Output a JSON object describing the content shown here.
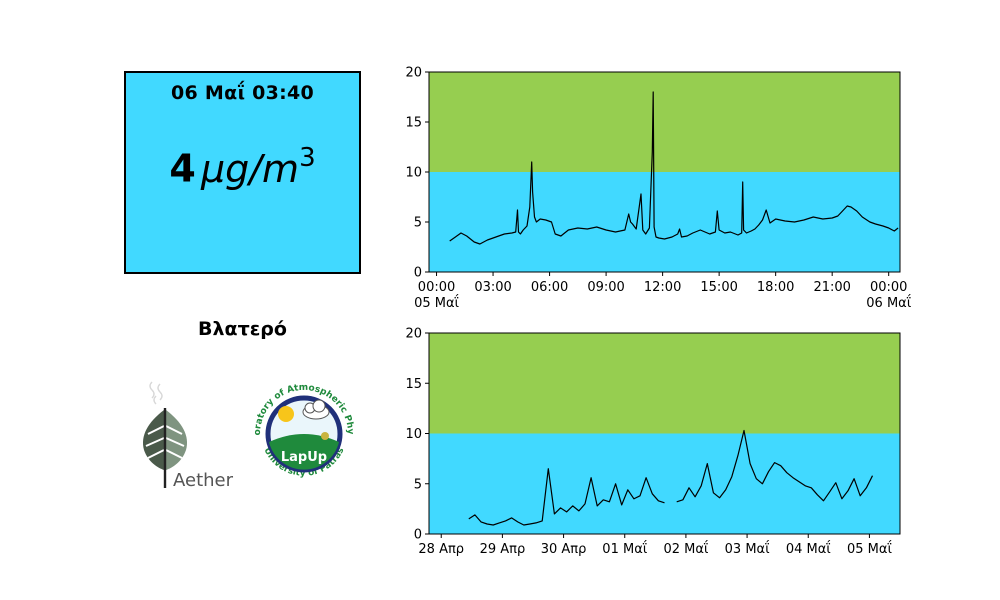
{
  "current_reading": {
    "timestamp": "06 Μαΐ 03:40",
    "value": "4",
    "unit_base": "μg/m",
    "unit_exponent": "3",
    "background": "#41d9ff"
  },
  "station": {
    "name": "Βλατερό"
  },
  "logos": {
    "aether": {
      "wordmark": "Aether"
    },
    "lapup": {
      "center_text": "LapUp",
      "ring_top": "Laboratory of Atmospheric Physics",
      "ring_bottom": "University of Patras"
    }
  },
  "colors": {
    "good_band": "#41d9ff",
    "moderate_band": "#96ce50",
    "line": "#000000"
  },
  "chart_data": [
    {
      "type": "line",
      "title": "",
      "xlabel": "",
      "ylabel": "",
      "ylim": [
        0,
        20
      ],
      "yticks": [
        0,
        5,
        10,
        15,
        20
      ],
      "xlim": [
        -0.4,
        24.6
      ],
      "xtick_positions": [
        0,
        3,
        6,
        9,
        12,
        15,
        18,
        21,
        24
      ],
      "xtick_labels": [
        "00:00\n05 Μαΐ",
        "03:00",
        "06:00",
        "09:00",
        "12:00",
        "15:00",
        "18:00",
        "21:00",
        "00:00\n06 Μαΐ"
      ],
      "bands": [
        {
          "from": 0,
          "to": 10,
          "color": "#41d9ff"
        },
        {
          "from": 10,
          "to": 20,
          "color": "#96ce50"
        }
      ],
      "series": [
        {
          "x": [
            0.7,
            1.0,
            1.3,
            1.6,
            2.0,
            2.3,
            2.7,
            3.0,
            3.3,
            3.6,
            4.0,
            4.2,
            4.3,
            4.35,
            4.45,
            4.6,
            4.8,
            4.95,
            5.05,
            5.1,
            5.2,
            5.3,
            5.5,
            5.8,
            6.1,
            6.3,
            6.6,
            7.0,
            7.5,
            8.0,
            8.5,
            9.0,
            9.5,
            10.0,
            10.2,
            10.3,
            10.4,
            10.6,
            10.85,
            10.95,
            11.1,
            11.3,
            11.45,
            11.5,
            11.55,
            11.65,
            11.8,
            12.1,
            12.5,
            12.8,
            12.9,
            13.0,
            13.3,
            13.6,
            14.0,
            14.5,
            14.8,
            14.9,
            15.0,
            15.3,
            15.6,
            16.0,
            16.2,
            16.25,
            16.3,
            16.45,
            16.7,
            16.9,
            17.1,
            17.3,
            17.5,
            17.7,
            18.0,
            18.5,
            19.0,
            19.5,
            20.0,
            20.5,
            21.0,
            21.3,
            21.5,
            21.8,
            22.0,
            22.3,
            22.6,
            23.0,
            23.3,
            23.7,
            24.0,
            24.3,
            24.5
          ],
          "y": [
            3.1,
            3.5,
            3.9,
            3.6,
            3.0,
            2.8,
            3.2,
            3.4,
            3.6,
            3.8,
            3.9,
            4.0,
            6.2,
            4.0,
            3.8,
            4.2,
            4.6,
            6.5,
            11.0,
            8.0,
            5.5,
            5.0,
            5.3,
            5.2,
            5.0,
            3.8,
            3.6,
            4.2,
            4.4,
            4.3,
            4.5,
            4.2,
            4.0,
            4.2,
            5.8,
            5.0,
            4.8,
            4.3,
            7.8,
            4.2,
            3.8,
            4.4,
            12.0,
            18.0,
            4.5,
            3.5,
            3.4,
            3.3,
            3.5,
            3.8,
            4.3,
            3.5,
            3.6,
            3.9,
            4.2,
            3.8,
            4.0,
            6.1,
            4.2,
            3.9,
            4.0,
            3.7,
            3.9,
            9.0,
            4.2,
            3.9,
            4.1,
            4.3,
            4.7,
            5.2,
            6.2,
            4.9,
            5.3,
            5.1,
            5.0,
            5.2,
            5.5,
            5.3,
            5.4,
            5.6,
            6.0,
            6.6,
            6.5,
            6.1,
            5.5,
            5.0,
            4.8,
            4.6,
            4.4,
            4.1,
            4.4
          ]
        }
      ]
    },
    {
      "type": "line",
      "title": "",
      "xlabel": "",
      "ylabel": "",
      "ylim": [
        0,
        20
      ],
      "yticks": [
        0,
        5,
        10,
        15,
        20
      ],
      "xlim": [
        -0.2,
        7.5
      ],
      "xtick_positions": [
        0,
        1,
        2,
        3,
        4,
        5,
        6,
        7
      ],
      "xtick_labels": [
        "28 Απρ",
        "29 Απρ",
        "30 Απρ",
        "01 Μαΐ",
        "02 Μαΐ",
        "03 Μαΐ",
        "04 Μαΐ",
        "05 Μαΐ"
      ],
      "bands": [
        {
          "from": 0,
          "to": 10,
          "color": "#41d9ff"
        },
        {
          "from": 10,
          "to": 20,
          "color": "#96ce50"
        }
      ],
      "series": [
        {
          "x": [
            0.45,
            0.55,
            0.65,
            0.75,
            0.85,
            0.95,
            1.05,
            1.15,
            1.25,
            1.35,
            1.45,
            1.55,
            1.65,
            1.75,
            1.85,
            1.95,
            2.05,
            2.15,
            2.25,
            2.35,
            2.45,
            2.55,
            2.65,
            2.75,
            2.85,
            2.95,
            3.05,
            3.15,
            3.25,
            3.35,
            3.45,
            3.55,
            3.65,
            3.75,
            3.85,
            3.95,
            4.05,
            4.15,
            4.25,
            4.35,
            4.45,
            4.55,
            4.65,
            4.75,
            4.85,
            4.95,
            5.05,
            5.15,
            5.25,
            5.35,
            5.45,
            5.55,
            5.65,
            5.75,
            5.85,
            5.95,
            6.05,
            6.15,
            6.25,
            6.35,
            6.45,
            6.55,
            6.65,
            6.75,
            6.85,
            6.95,
            7.05
          ],
          "y": [
            1.5,
            1.9,
            1.2,
            1.0,
            0.9,
            1.1,
            1.3,
            1.6,
            1.2,
            0.9,
            1.0,
            1.1,
            1.3,
            6.5,
            2.0,
            2.6,
            2.2,
            2.8,
            2.3,
            3.0,
            5.6,
            2.8,
            3.4,
            3.2,
            5.0,
            2.9,
            4.4,
            3.5,
            3.8,
            5.6,
            4.0,
            3.3,
            3.1,
            null,
            3.2,
            3.4,
            4.6,
            3.7,
            4.8,
            7.0,
            4.1,
            3.6,
            4.4,
            5.7,
            7.8,
            10.3,
            7.0,
            5.5,
            5.0,
            6.2,
            7.1,
            6.8,
            6.1,
            5.6,
            5.2,
            4.8,
            4.6,
            3.9,
            3.3,
            4.2,
            5.1,
            3.5,
            4.3,
            5.5,
            3.8,
            4.6,
            5.8
          ]
        }
      ]
    }
  ]
}
